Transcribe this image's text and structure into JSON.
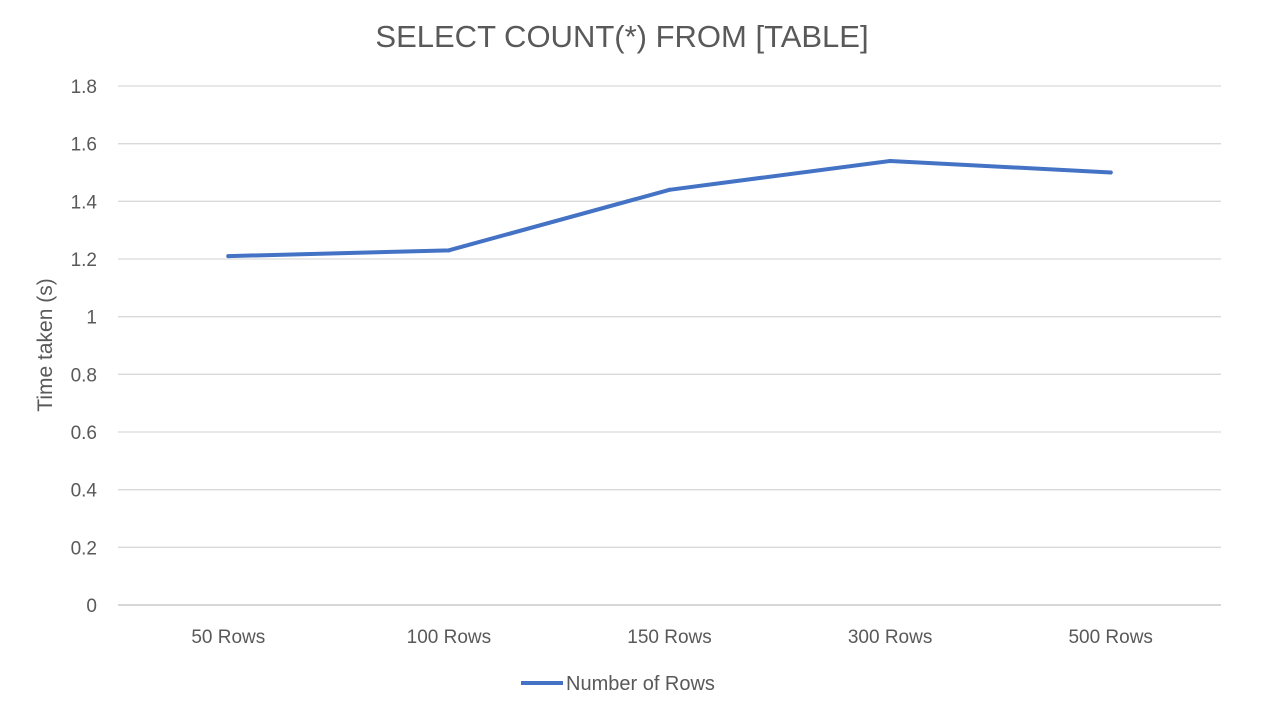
{
  "chart_data": {
    "type": "line",
    "title": "SELECT COUNT(*) FROM [TABLE]",
    "xlabel": "",
    "ylabel": "Time taken (s)",
    "categories": [
      "50 Rows",
      "100 Rows",
      "150 Rows",
      "300 Rows",
      "500 Rows"
    ],
    "series": [
      {
        "name": "Number of Rows",
        "values": [
          1.21,
          1.23,
          1.44,
          1.54,
          1.5
        ],
        "color": "#4472C4"
      }
    ],
    "ylim": [
      0,
      1.8
    ],
    "yticks": [
      "0",
      "0.2",
      "0.4",
      "0.6",
      "0.8",
      "1",
      "1.2",
      "1.4",
      "1.6",
      "1.8"
    ],
    "grid": true,
    "legend_position": "bottom"
  }
}
